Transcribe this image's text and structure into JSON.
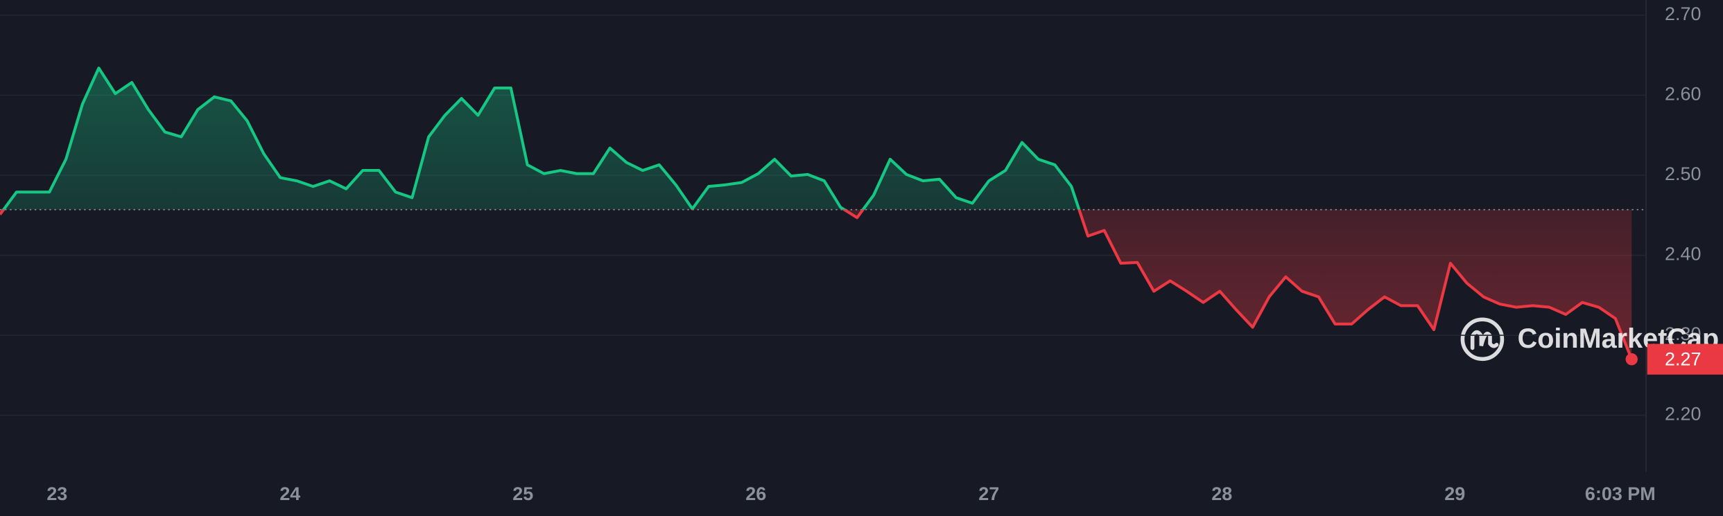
{
  "chart_data": {
    "type": "line",
    "x": [
      22.755,
      22.826,
      22.896,
      22.967,
      23.038,
      23.109,
      23.179,
      23.25,
      23.321,
      23.392,
      23.463,
      23.533,
      23.604,
      23.675,
      23.746,
      23.816,
      23.887,
      23.958,
      24.029,
      24.099,
      24.17,
      24.241,
      24.312,
      24.382,
      24.453,
      24.524,
      24.595,
      24.665,
      24.736,
      24.807,
      24.878,
      24.948,
      25.019,
      25.09,
      25.161,
      25.231,
      25.302,
      25.373,
      25.444,
      25.514,
      25.585,
      25.656,
      25.727,
      25.797,
      25.868,
      25.939,
      26.01,
      26.08,
      26.151,
      26.222,
      26.293,
      26.363,
      26.434,
      26.505,
      26.576,
      26.646,
      26.717,
      26.788,
      26.859,
      26.929,
      27.0,
      27.071,
      27.142,
      27.212,
      27.283,
      27.354,
      27.425,
      27.495,
      27.566,
      27.637,
      27.708,
      27.778,
      27.849,
      27.92,
      27.991,
      28.061,
      28.132,
      28.203,
      28.274,
      28.344,
      28.415,
      28.486,
      28.557,
      28.627,
      28.698,
      28.769,
      28.84,
      28.91,
      28.981,
      29.052,
      29.123,
      29.193,
      29.264,
      29.335,
      29.406,
      29.476,
      29.547,
      29.618,
      29.689,
      29.759
    ],
    "values": [
      2.451,
      2.479,
      2.479,
      2.479,
      2.52,
      2.589,
      2.634,
      2.602,
      2.616,
      2.582,
      2.554,
      2.548,
      2.582,
      2.598,
      2.593,
      2.568,
      2.527,
      2.497,
      2.493,
      2.486,
      2.493,
      2.483,
      2.506,
      2.506,
      2.479,
      2.472,
      2.548,
      2.575,
      2.596,
      2.575,
      2.609,
      2.609,
      2.513,
      2.502,
      2.506,
      2.502,
      2.502,
      2.534,
      2.516,
      2.506,
      2.513,
      2.488,
      2.458,
      2.486,
      2.488,
      2.491,
      2.502,
      2.52,
      2.499,
      2.501,
      2.493,
      2.46,
      2.447,
      2.475,
      2.52,
      2.501,
      2.493,
      2.495,
      2.472,
      2.465,
      2.493,
      2.506,
      2.541,
      2.52,
      2.513,
      2.486,
      2.424,
      2.431,
      2.39,
      2.391,
      2.355,
      2.368,
      2.355,
      2.341,
      2.355,
      2.332,
      2.31,
      2.348,
      2.373,
      2.355,
      2.348,
      2.314,
      2.314,
      2.332,
      2.348,
      2.337,
      2.337,
      2.307,
      2.39,
      2.365,
      2.348,
      2.339,
      2.335,
      2.337,
      2.335,
      2.326,
      2.341,
      2.335,
      2.321,
      2.27
    ],
    "up_color": "#16c784",
    "down_color": "#ea3943",
    "baseline": 2.457,
    "current_price": 2.27,
    "watermark": "CoinMarketCap",
    "xlim": [
      22.755,
      29.769
    ],
    "xticks": [
      {
        "value": 23,
        "label": "23"
      },
      {
        "value": 24,
        "label": "24"
      },
      {
        "value": 25,
        "label": "25"
      },
      {
        "value": 26,
        "label": "26"
      },
      {
        "value": 27,
        "label": "27"
      },
      {
        "value": 28,
        "label": "28"
      },
      {
        "value": 29,
        "label": "29"
      },
      {
        "value": 29.71,
        "label": "6:03 PM"
      }
    ],
    "ylim": [
      2.129,
      2.719
    ],
    "yticks": [
      {
        "value": 2.2,
        "label": "2.20"
      },
      {
        "value": 2.3,
        "label": "2.30"
      },
      {
        "value": 2.4,
        "label": "2.40"
      },
      {
        "value": 2.5,
        "label": "2.50"
      },
      {
        "value": 2.6,
        "label": "2.60"
      },
      {
        "value": 2.7,
        "label": "2.70"
      }
    ],
    "grid": true
  }
}
